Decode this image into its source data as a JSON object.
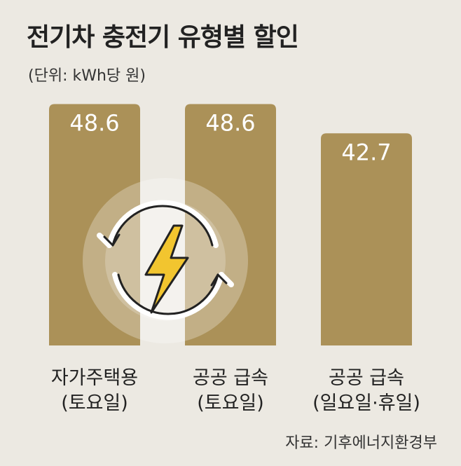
{
  "header": {
    "title": "전기차 충전기 유형별 할인",
    "unit": "(단위: kWh당 원)"
  },
  "footer": {
    "source": "자료: 기후에너지환경부"
  },
  "icon": {
    "name": "lightning-bolt-recycle-icon"
  },
  "colors": {
    "bar": "#ab9158",
    "label": "#ffffff",
    "background": "#ece9e2",
    "bolt": "#f2c52f"
  },
  "chart_data": {
    "type": "bar",
    "title": "전기차 충전기 유형별 할인",
    "ylabel": "(단위: kWh당 원)",
    "xlabel": "",
    "categories": [
      [
        "자가주택용",
        "(토요일)"
      ],
      [
        "공공 급속",
        "(토요일)"
      ],
      [
        "공공 급속",
        "(일요일·휴일)"
      ]
    ],
    "values": [
      48.6,
      48.6,
      42.7
    ],
    "value_labels": [
      "48.6",
      "48.6",
      "42.7"
    ],
    "ylim": [
      0,
      56
    ],
    "grid": false,
    "legend": "none"
  }
}
